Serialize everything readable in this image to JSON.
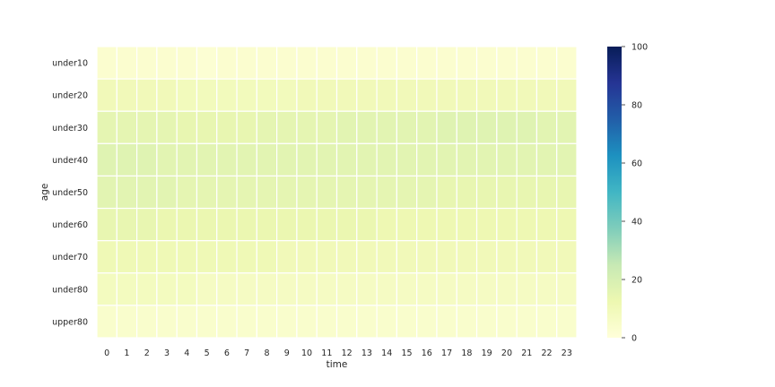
{
  "chart_data": {
    "type": "heatmap",
    "title": "",
    "xlabel": "time",
    "ylabel": "age",
    "x_categories": [
      "0",
      "1",
      "2",
      "3",
      "4",
      "5",
      "6",
      "7",
      "8",
      "9",
      "10",
      "11",
      "12",
      "13",
      "14",
      "15",
      "16",
      "17",
      "18",
      "19",
      "20",
      "21",
      "22",
      "23"
    ],
    "y_categories": [
      "under10",
      "under20",
      "under30",
      "under40",
      "under50",
      "under60",
      "under70",
      "under80",
      "upper80"
    ],
    "values": [
      [
        3,
        3,
        3,
        3,
        3,
        2,
        3,
        3,
        3,
        3,
        3,
        3,
        3,
        3,
        3,
        3,
        3,
        3,
        3,
        3,
        3,
        3,
        3,
        3
      ],
      [
        10,
        10,
        10,
        10,
        9,
        9,
        9,
        9,
        9,
        9,
        10,
        10,
        10,
        10,
        10,
        10,
        10,
        10,
        10,
        10,
        10,
        10,
        10,
        10
      ],
      [
        15,
        15,
        15,
        15,
        14,
        14,
        14,
        14,
        15,
        15,
        15,
        15,
        16,
        16,
        16,
        16,
        16,
        17,
        17,
        17,
        17,
        17,
        16,
        16
      ],
      [
        17,
        17,
        17,
        16,
        16,
        16,
        16,
        16,
        16,
        16,
        16,
        16,
        16,
        16,
        16,
        16,
        16,
        16,
        16,
        16,
        16,
        16,
        16,
        16
      ],
      [
        16,
        16,
        16,
        16,
        15,
        15,
        15,
        15,
        15,
        15,
        15,
        15,
        15,
        15,
        15,
        15,
        15,
        14,
        14,
        14,
        14,
        14,
        14,
        14
      ],
      [
        14,
        14,
        14,
        13,
        13,
        13,
        13,
        13,
        13,
        13,
        13,
        13,
        13,
        13,
        12,
        12,
        12,
        12,
        12,
        12,
        12,
        12,
        12,
        12
      ],
      [
        11,
        11,
        11,
        11,
        11,
        11,
        11,
        11,
        11,
        10,
        10,
        10,
        10,
        10,
        10,
        10,
        10,
        10,
        10,
        10,
        10,
        10,
        10,
        10
      ],
      [
        8,
        8,
        8,
        8,
        8,
        7,
        7,
        7,
        7,
        7,
        7,
        7,
        7,
        7,
        7,
        7,
        7,
        7,
        7,
        7,
        7,
        7,
        7,
        7
      ],
      [
        4,
        4,
        4,
        4,
        4,
        4,
        4,
        4,
        4,
        4,
        4,
        4,
        4,
        4,
        4,
        4,
        4,
        4,
        4,
        4,
        4,
        4,
        4,
        4
      ]
    ],
    "colorbar": {
      "min": 0,
      "max": 100,
      "ticks": [
        0,
        20,
        40,
        60,
        80,
        100
      ],
      "colormap": "YlGnBu"
    },
    "grid": true
  }
}
